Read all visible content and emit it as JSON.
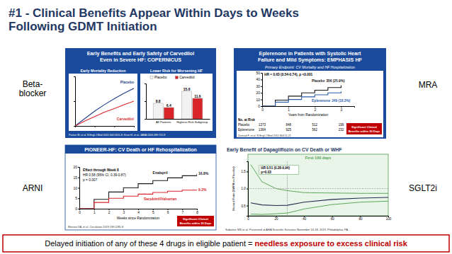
{
  "slide": {
    "title": [
      "#1 - Clinical Benefits Appear Within Days to Weeks",
      "Following GDMT Initiation"
    ],
    "drug_labels": [
      [
        "Beta-",
        "blocker"
      ],
      [
        "MRA"
      ],
      [
        "ARNI"
      ],
      [
        "SGLT2i"
      ]
    ],
    "footer": {
      "text": "Delayed initiation of any of these 4 drugs in eligible patient = ",
      "emphasis": "needless exposure to excess clinical risk"
    }
  },
  "panels": [
    {
      "title": [
        "Early Benefits and Early Safety of Carvedilol",
        "Even in Severe HF: COPERNICUS"
      ],
      "citation": "Packer M, et al. N Engl J Med 2001;344:1651-8; Krum H, et al. JAMA 2003;289:712-8"
    },
    {
      "title": [
        "Eplerenone in Patients with Systolic Heart",
        "Failure and Mild Symptoms: EMPHASIS HF"
      ],
      "citation": "Zannad F, et al. N Engl J Med 2011;364:11-21",
      "callout": [
        "Significant Clinical",
        "Benefits within 30 Days"
      ]
    },
    {
      "title": [
        "PIONEER-HF: CV Death or HF Rehospitalization"
      ],
      "citation": "Morrow DA, et al. Circulation 2019;139:2285-8",
      "callout": [
        "Significant Clinical",
        "Benefits within 30 Days"
      ]
    },
    {
      "title": [
        "Early Benefit of Dapagliflozin on CV Death or WHF"
      ],
      "citation": "Sabatine MS et al. Presented at AHA Scientific Sessions November 16-18, 2019, Philadelphia, PA."
    }
  ],
  "chart_data": [
    {
      "type": "line",
      "title": "Early Mortality Reduction",
      "x": [
        0,
        10,
        20,
        30,
        40,
        50,
        60
      ],
      "xlim": [
        0,
        60
      ],
      "xticks": [
        0,
        20,
        40,
        60
      ],
      "ylim": [
        0,
        10
      ],
      "yticks": [
        0,
        5,
        10
      ],
      "tick_labels": false,
      "series": [
        {
          "name": "Placebo",
          "color": "#1f3f8a",
          "values": [
            0,
            1.5,
            3,
            4.3,
            5.5,
            6.6,
            7.6
          ]
        },
        {
          "name": "Carvedilol",
          "color": "#d9252a",
          "values": [
            0,
            1,
            1.9,
            2.8,
            3.5,
            4.3,
            5
          ]
        }
      ]
    },
    {
      "type": "bar",
      "title": "Lower Risk for Worsening HF",
      "categories": [
        "All Patients",
        "Highest-Risk Subgroup"
      ],
      "series": [
        {
          "name": "Placebo",
          "color": "#f2f2f2",
          "values": [
            8.8,
            15.6
          ]
        },
        {
          "name": "Carvedilol",
          "color": "#d9252a",
          "values": [
            6.4,
            11.6
          ]
        }
      ],
      "ylim": [
        0,
        20
      ],
      "yticks": [
        0,
        10,
        20
      ],
      "tick_labels": "x",
      "data_labels": true,
      "legend": "top"
    },
    {
      "type": "line",
      "subtitle": "Primary Endpoint: CV Mortality and HF Hospitalization",
      "line_style": "step",
      "x": [
        0,
        0.5,
        1,
        1.5,
        2,
        2.5,
        3
      ],
      "xlim": [
        0,
        3.5
      ],
      "xticks": [
        0,
        1,
        2,
        3
      ],
      "x_label": "Years from Randomization",
      "ylim": [
        0,
        50
      ],
      "yticks": [
        0,
        10,
        20,
        30,
        40,
        50
      ],
      "series": [
        {
          "name": "Placebo",
          "events": "356 (25.9%)",
          "color": "#1a1a1a",
          "values": [
            0,
            9,
            15,
            20,
            24,
            28,
            31
          ]
        },
        {
          "name": "Eplerenone",
          "events": "249 (18.3%)",
          "color": "#2e5fa8",
          "values": [
            0,
            6,
            10,
            14,
            17,
            20,
            22
          ]
        }
      ],
      "annotations": [
        "HR = 0.63 (0.54-0.74), p <0.001"
      ],
      "at_risk": {
        "title": "No. at Risk",
        "rows": [
          {
            "name": "Placebo",
            "counts": [
              1373,
              848,
              512,
              199
            ]
          },
          {
            "name": "Eplerenone",
            "counts": [
              1364,
              925,
              562,
              232
            ]
          }
        ]
      }
    },
    {
      "type": "line",
      "line_style": "step",
      "x": [
        0,
        1,
        2,
        3,
        4,
        5,
        6,
        7,
        8
      ],
      "xlim": [
        0,
        8
      ],
      "xticks": [
        0,
        1,
        2,
        3,
        4,
        5,
        6,
        7,
        8
      ],
      "x_label": "Weeks since Randomization",
      "ylim": [
        0,
        20
      ],
      "yticks": [
        0,
        5,
        10,
        15,
        20
      ],
      "series": [
        {
          "name": "Enalapril",
          "end_label": "16.8%",
          "color": "#1a1a1a",
          "values": [
            0,
            4.5,
            8,
            10,
            12,
            13.5,
            14.8,
            15.8,
            16.8
          ]
        },
        {
          "name": "Sacubitril/Valsartan",
          "end_label": "9.2%",
          "color": "#d9252a",
          "values": [
            0,
            3,
            5,
            6,
            7,
            7.8,
            8.4,
            8.9,
            9.2
          ]
        }
      ],
      "annotations": [
        "Effect through Week 8",
        "HR 0.58 (95% CI, 0.39-0.87)",
        "p = 0.007"
      ]
    },
    {
      "type": "line",
      "x": [
        2,
        10,
        20,
        28,
        40,
        60,
        80,
        100
      ],
      "xlim": [
        0,
        100
      ],
      "xticks": [
        0,
        20,
        40,
        60,
        80,
        100
      ],
      "ylim": [
        0.2,
        1.8
      ],
      "yticks": [
        0.5,
        {
          "value": 1,
          "label": "1.0"
        },
        1.5
      ],
      "y_label": "Hazard Ratio (DAPA vs Placebo)",
      "series": [
        {
          "color": "#1f2f4f",
          "values": [
            0.58,
            0.52,
            0.5,
            0.51,
            0.6,
            0.68,
            0.72,
            0.74
          ],
          "lower": [
            0.25,
            0.24,
            0.26,
            0.28,
            0.4,
            0.53,
            0.6,
            0.63
          ],
          "upper": [
            1.7,
            1.2,
            1,
            0.94,
            0.88,
            0.87,
            0.86,
            0.86
          ]
        }
      ],
      "reference_line": 1,
      "vline": 28,
      "region": {
        "label": "First 100 days",
        "range": [
          0,
          100
        ]
      },
      "annotations": [
        "HR 0.51 (0.28-0.94)",
        "p=0.03"
      ]
    }
  ]
}
